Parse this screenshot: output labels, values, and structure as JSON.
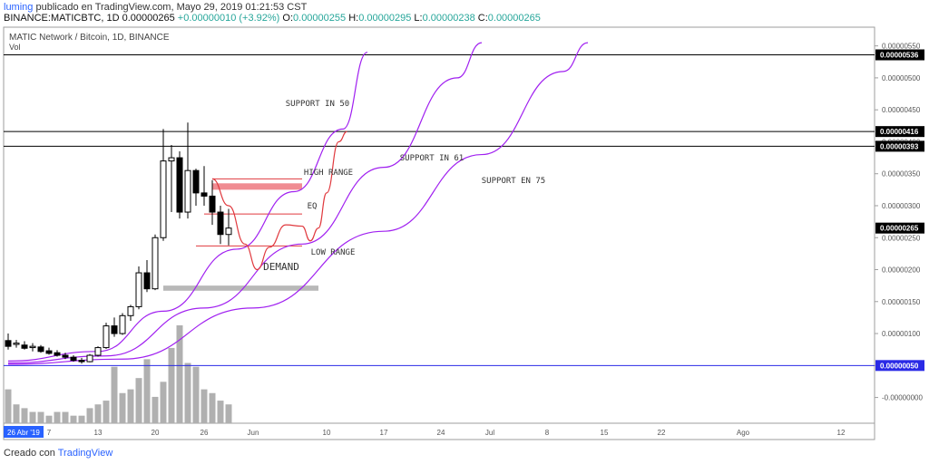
{
  "header": {
    "user": "luming",
    "published_text": "publicado en TradingView.com, Mayo 29, 2019 01:21:53 CST",
    "symbol": "BINANCE:MATICBTC, 1D",
    "last": "0.00000265",
    "change": "+0.00000010 (+3.92%)",
    "o_label": "O:",
    "o": "0.00000255",
    "h_label": "H:",
    "h": "0.00000295",
    "l_label": "L:",
    "l": "0.00000238",
    "c_label": "C:",
    "c": "0.00000265"
  },
  "footer": {
    "created": "Creado con",
    "brand": "TradingView"
  },
  "colors": {
    "up": "#26a69a",
    "arc": "#a020f0",
    "red_line": "#e0393e",
    "red_zone": "#f08c92",
    "grey_zone": "#b8b8b8",
    "blue_line": "#2a2ae6",
    "volume": "#b0b0b0",
    "accent": "#2962ff"
  },
  "chart_data": {
    "type": "candlestick",
    "title": "MATIC Network / Bitcoin, 1D, BINANCE",
    "sub_label": "Vol",
    "y_ticks": [
      "0.00000550",
      "0.00000500",
      "0.00000450",
      "0.00000400",
      "0.00000350",
      "0.00000300",
      "0.00000250",
      "0.00000200",
      "0.00000150",
      "0.00000100",
      "0.00000050",
      "-0.00000000"
    ],
    "y_tick_values": [
      5.5e-06,
      5e-06,
      4.5e-06,
      4e-06,
      3.5e-06,
      3e-06,
      2.5e-06,
      2e-06,
      1.5e-06,
      1e-06,
      5e-07,
      0
    ],
    "ylim": [
      -2e-08,
      5.58e-06
    ],
    "x_labels": [
      {
        "day": 0,
        "text": "26 Abr '19",
        "highlight": true
      },
      {
        "day": 5,
        "text": "7"
      },
      {
        "day": 11,
        "text": "13"
      },
      {
        "day": 18,
        "text": "20"
      },
      {
        "day": 24,
        "text": "26"
      },
      {
        "day": 30,
        "text": "Jun"
      },
      {
        "day": 39,
        "text": "10"
      },
      {
        "day": 46,
        "text": "17"
      },
      {
        "day": 53,
        "text": "24"
      },
      {
        "day": 59,
        "text": "Jul"
      },
      {
        "day": 66,
        "text": "8"
      },
      {
        "day": 73,
        "text": "15"
      },
      {
        "day": 80,
        "text": "22"
      },
      {
        "day": 90,
        "text": "Ago"
      },
      {
        "day": 102,
        "text": "12"
      }
    ],
    "candles": [
      {
        "o": 8.9e-07,
        "h": 1e-06,
        "l": 7.5e-07,
        "c": 8e-07
      },
      {
        "o": 8.3e-07,
        "h": 9e-07,
        "l": 7.8e-07,
        "c": 8.5e-07
      },
      {
        "o": 8.2e-07,
        "h": 8.8e-07,
        "l": 7.5e-07,
        "c": 7.7e-07
      },
      {
        "o": 7.8e-07,
        "h": 8.5e-07,
        "l": 7.2e-07,
        "c": 8e-07
      },
      {
        "o": 7.9e-07,
        "h": 8.2e-07,
        "l": 7e-07,
        "c": 7.2e-07
      },
      {
        "o": 7.3e-07,
        "h": 7.8e-07,
        "l": 6.7e-07,
        "c": 6.9e-07
      },
      {
        "o": 7e-07,
        "h": 7.4e-07,
        "l": 6.4e-07,
        "c": 6.6e-07
      },
      {
        "o": 6.6e-07,
        "h": 7e-07,
        "l": 6e-07,
        "c": 6.3e-07
      },
      {
        "o": 6.3e-07,
        "h": 6.6e-07,
        "l": 5.6e-07,
        "c": 5.8e-07
      },
      {
        "o": 5.8e-07,
        "h": 6.2e-07,
        "l": 5.3e-07,
        "c": 5.6e-07
      },
      {
        "o": 5.6e-07,
        "h": 6.8e-07,
        "l": 5.5e-07,
        "c": 6.6e-07
      },
      {
        "o": 6.6e-07,
        "h": 8e-07,
        "l": 6.4e-07,
        "c": 7.8e-07
      },
      {
        "o": 7.8e-07,
        "h": 1.17e-06,
        "l": 7.6e-07,
        "c": 1.12e-06
      },
      {
        "o": 1.12e-06,
        "h": 1.25e-06,
        "l": 9.5e-07,
        "c": 1e-06
      },
      {
        "o": 1e-06,
        "h": 1.32e-06,
        "l": 9.8e-07,
        "c": 1.28e-06
      },
      {
        "o": 1.28e-06,
        "h": 1.45e-06,
        "l": 1.2e-06,
        "c": 1.42e-06
      },
      {
        "o": 1.42e-06,
        "h": 2.05e-06,
        "l": 1.38e-06,
        "c": 1.95e-06
      },
      {
        "o": 1.95e-06,
        "h": 2.15e-06,
        "l": 1.65e-06,
        "c": 1.7e-06
      },
      {
        "o": 1.7e-06,
        "h": 2.55e-06,
        "l": 1.68e-06,
        "c": 2.5e-06
      },
      {
        "o": 2.5e-06,
        "h": 4.2e-06,
        "l": 2.45e-06,
        "c": 3.7e-06
      },
      {
        "o": 3.7e-06,
        "h": 3.95e-06,
        "l": 2.9e-06,
        "c": 3.75e-06
      },
      {
        "o": 3.75e-06,
        "h": 3.85e-06,
        "l": 2.8e-06,
        "c": 2.9e-06
      },
      {
        "o": 2.9e-06,
        "h": 4.3e-06,
        "l": 2.8e-06,
        "c": 3.55e-06
      },
      {
        "o": 3.55e-06,
        "h": 3.58e-06,
        "l": 3e-06,
        "c": 3.2e-06
      },
      {
        "o": 3.2e-06,
        "h": 3.62e-06,
        "l": 3e-06,
        "c": 3.15e-06
      },
      {
        "o": 3.15e-06,
        "h": 3.4e-06,
        "l": 2.7e-06,
        "c": 2.9e-06
      },
      {
        "o": 2.9e-06,
        "h": 3e-06,
        "l": 2.4e-06,
        "c": 2.55e-06
      },
      {
        "o": 2.55e-06,
        "h": 2.95e-06,
        "l": 2.38e-06,
        "c": 2.65e-06
      }
    ],
    "volume": [
      9,
      5,
      4,
      3,
      3,
      2,
      3,
      3,
      2,
      2,
      4,
      5,
      6,
      15,
      8,
      9,
      12,
      17,
      7,
      11,
      20,
      26,
      16,
      15,
      9,
      8,
      6,
      5
    ],
    "horizontal_lines": [
      {
        "value": 5.36e-06,
        "label": "0.00000536",
        "color": "#000000"
      },
      {
        "value": 4.16e-06,
        "label": "0.00000416",
        "color": "#000000"
      },
      {
        "value": 3.93e-06,
        "label": "0.00000393",
        "color": "#000000"
      },
      {
        "value": 5e-07,
        "label": "0.00000050",
        "color": "#2a2ae6"
      }
    ],
    "last_price": {
      "value": 2.65e-06,
      "label": "0.00000265"
    },
    "annotations": [
      {
        "text": "SUPPORT IN 50"
      },
      {
        "text": "SUPPORT IN 61"
      },
      {
        "text": "SUPPORT EN 75"
      },
      {
        "text": "HIGH RANGE"
      },
      {
        "text": "EQ"
      },
      {
        "text": "LOW RANGE"
      },
      {
        "text": "DEMAND"
      }
    ],
    "zones": {
      "high_range": {
        "from_day": 25,
        "to_day": 36,
        "low": 3.25e-06,
        "high": 3.35e-06
      },
      "high_line": {
        "from_day": 25,
        "to_day": 36,
        "value": 3.42e-06
      },
      "eq_line": {
        "from_day": 24,
        "to_day": 36,
        "value": 2.87e-06
      },
      "low_line": {
        "from_day": 23,
        "to_day": 36,
        "value": 2.37e-06
      },
      "demand": {
        "from_day": 19,
        "to_day": 38,
        "low": 1.67e-06,
        "high": 1.75e-06
      }
    },
    "arcs": [
      {
        "name": "SUPPORT IN 50",
        "pts": [
          [
            0,
            5.7e-07
          ],
          [
            11,
            7.2e-07
          ],
          [
            19,
            1.35e-06
          ],
          [
            28,
            2.32e-06
          ],
          [
            35,
            3.22e-06
          ],
          [
            41,
            4.2e-06
          ],
          [
            44,
            5.4e-06
          ]
        ]
      },
      {
        "name": "SUPPORT IN 61",
        "pts": [
          [
            0,
            5.4e-07
          ],
          [
            12,
            6.5e-07
          ],
          [
            24,
            1.4e-06
          ],
          [
            36,
            2.4e-06
          ],
          [
            46,
            3.6e-06
          ],
          [
            55,
            5e-06
          ],
          [
            58,
            5.55e-06
          ]
        ]
      },
      {
        "name": "SUPPORT EN 75",
        "pts": [
          [
            0,
            5.2e-07
          ],
          [
            14,
            6e-07
          ],
          [
            30,
            1.4e-06
          ],
          [
            46,
            2.6e-06
          ],
          [
            58,
            3.8e-06
          ],
          [
            68,
            5.1e-06
          ],
          [
            71,
            5.55e-06
          ]
        ]
      }
    ],
    "projection": {
      "pts": [
        [
          25,
          3.42e-06
        ],
        [
          27,
          3e-06
        ],
        [
          29,
          2.4e-06
        ],
        [
          30.5,
          2e-06
        ],
        [
          32,
          2.35e-06
        ],
        [
          34,
          2.7e-06
        ],
        [
          36,
          2.68e-06
        ],
        [
          37,
          2.45e-06
        ],
        [
          38,
          2.65e-06
        ],
        [
          39,
          3.2e-06
        ],
        [
          40.5,
          4e-06
        ],
        [
          41.5,
          4.16e-06
        ]
      ]
    }
  }
}
